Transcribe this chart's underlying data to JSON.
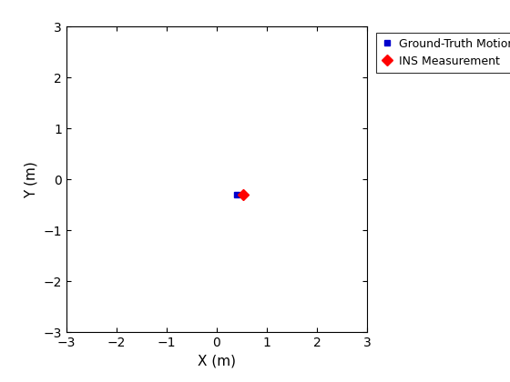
{
  "gt_x": [
    0.4
  ],
  "gt_y": [
    -0.3
  ],
  "ins_x": [
    0.52
  ],
  "ins_y": [
    -0.3
  ],
  "gt_color": "#0000cd",
  "ins_color": "#ff0000",
  "gt_marker": "s",
  "ins_marker": "D",
  "gt_label": "Ground-Truth Motion",
  "ins_label": "INS Measurement",
  "gt_marker_size": 5,
  "ins_marker_size": 6,
  "xlabel": "X (m)",
  "ylabel": "Y (m)",
  "xlim": [
    -3,
    3
  ],
  "ylim": [
    -3,
    3
  ],
  "xticks": [
    -3,
    -2,
    -1,
    0,
    1,
    2,
    3
  ],
  "yticks": [
    -3,
    -2,
    -1,
    0,
    1,
    2,
    3
  ],
  "background_color": "#ffffff",
  "legend_loc": "upper right",
  "axis_fontsize": 11,
  "tick_fontsize": 10,
  "legend_fontsize": 9
}
